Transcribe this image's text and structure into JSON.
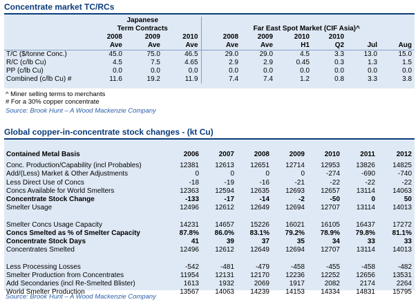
{
  "section1": {
    "title": "Concentrate market TC/RCs",
    "group_japanese_line1": "Japanese",
    "group_japanese_line2": "Term Contracts",
    "group_fareast": "Far East Spot Market (CIF Asia)^",
    "years_row": [
      "2008",
      "2009",
      "2010",
      "2008",
      "2009",
      "2010",
      "2010",
      "",
      ""
    ],
    "periods_row": [
      "Ave",
      "Ave",
      "Ave",
      "Ave",
      "Ave",
      "H1",
      "Q2",
      "Jul",
      "Aug"
    ],
    "rows": [
      {
        "label": "T/C ($/tonne Conc.)",
        "values": [
          "45.0",
          "75.0",
          "46.5",
          "29.0",
          "29.0",
          "4.5",
          "3.3",
          "13.0",
          "15.0"
        ]
      },
      {
        "label": "R/C (c/lb Cu)",
        "values": [
          "4.5",
          "7.5",
          "4.65",
          "2.9",
          "2.9",
          "0.45",
          "0.3",
          "1.3",
          "1.5"
        ]
      },
      {
        "label": "PP (c/lb Cu)",
        "values": [
          "0.0",
          "0.0",
          "0.0",
          "0.0",
          "0.0",
          "0.0",
          "0.0",
          "0.0",
          "0.0"
        ]
      },
      {
        "label": "Combined (c/lb Cu) #",
        "values": [
          "11.6",
          "19.2",
          "11.9",
          "7.4",
          "7.4",
          "1.2",
          "0.8",
          "3.3",
          "3.8"
        ]
      }
    ],
    "note1": "^ Miner selling terms to merchants",
    "note2": "# For a 30% copper concentrate",
    "source": "Source: Brook Hunt – A Wood Mackenzie Company"
  },
  "section2": {
    "title": "Global copper-in-concentrate stock changes - (kt Cu)",
    "header_label": "Contained Metal Basis",
    "years": [
      "2006",
      "2007",
      "2008",
      "2009",
      "2010",
      "2011",
      "2012"
    ],
    "rows": [
      {
        "label": "Conc. Production/Capability (incl Probables)",
        "bold": false,
        "values": [
          "12381",
          "12613",
          "12651",
          "12714",
          "12953",
          "13826",
          "14825"
        ]
      },
      {
        "label": "Add/(Less) Market & Other Adjustments",
        "bold": false,
        "values": [
          "0",
          "0",
          "0",
          "0",
          "-274",
          "-690",
          "-740"
        ]
      },
      {
        "label": "Less Direct Use of Concs",
        "bold": false,
        "values": [
          "-18",
          "-19",
          "-16",
          "-21",
          "-22",
          "-22",
          "-22"
        ]
      },
      {
        "label": "Concs Available for World Smelters",
        "bold": false,
        "values": [
          "12363",
          "12594",
          "12635",
          "12693",
          "12657",
          "13114",
          "14063"
        ]
      },
      {
        "label": "Concentrate Stock Change",
        "bold": true,
        "values": [
          "-133",
          "-17",
          "-14",
          "-2",
          "-50",
          "0",
          "50"
        ]
      },
      {
        "label": "Smelter Usage",
        "bold": false,
        "values": [
          "12496",
          "12612",
          "12649",
          "12694",
          "12707",
          "13114",
          "14013"
        ]
      },
      {
        "label": "",
        "bold": false,
        "values": [
          "",
          "",
          "",
          "",
          "",
          "",
          ""
        ]
      },
      {
        "label": "Smelter Concs Usage Capacity",
        "bold": false,
        "values": [
          "14231",
          "14657",
          "15226",
          "16021",
          "16105",
          "16437",
          "17272"
        ]
      },
      {
        "label": "Concs Smelted as % of Smelter Capacity",
        "bold": true,
        "values": [
          "87.8%",
          "86.0%",
          "83.1%",
          "79.2%",
          "78.9%",
          "79.8%",
          "81.1%"
        ]
      },
      {
        "label": "Concentrate Stock Days",
        "bold": true,
        "values": [
          "41",
          "39",
          "37",
          "35",
          "34",
          "33",
          "33"
        ]
      },
      {
        "label": "Concentrates Smelted",
        "bold": false,
        "values": [
          "12496",
          "12612",
          "12649",
          "12694",
          "12707",
          "13114",
          "14013"
        ]
      },
      {
        "label": "",
        "bold": false,
        "values": [
          "",
          "",
          "",
          "",
          "",
          "",
          ""
        ]
      },
      {
        "label": "Less Processing Losses",
        "bold": false,
        "values": [
          "-542",
          "-481",
          "-479",
          "-458",
          "-455",
          "-458",
          "-482"
        ]
      },
      {
        "label": "Smelter Production from Concentrates",
        "bold": false,
        "values": [
          "11954",
          "12131",
          "12170",
          "12236",
          "12252",
          "12656",
          "13531"
        ]
      },
      {
        "label": "Add Secondaries (incl Re-Smelted Blister)",
        "bold": false,
        "values": [
          "1613",
          "1932",
          "2069",
          "1917",
          "2082",
          "2174",
          "2264"
        ]
      },
      {
        "label": "World Smelter Production",
        "bold": false,
        "values": [
          "13567",
          "14063",
          "14239",
          "14153",
          "14334",
          "14831",
          "15795"
        ]
      }
    ],
    "source": "Source: Brook Hunt – A Wood Mackenzie Company"
  }
}
